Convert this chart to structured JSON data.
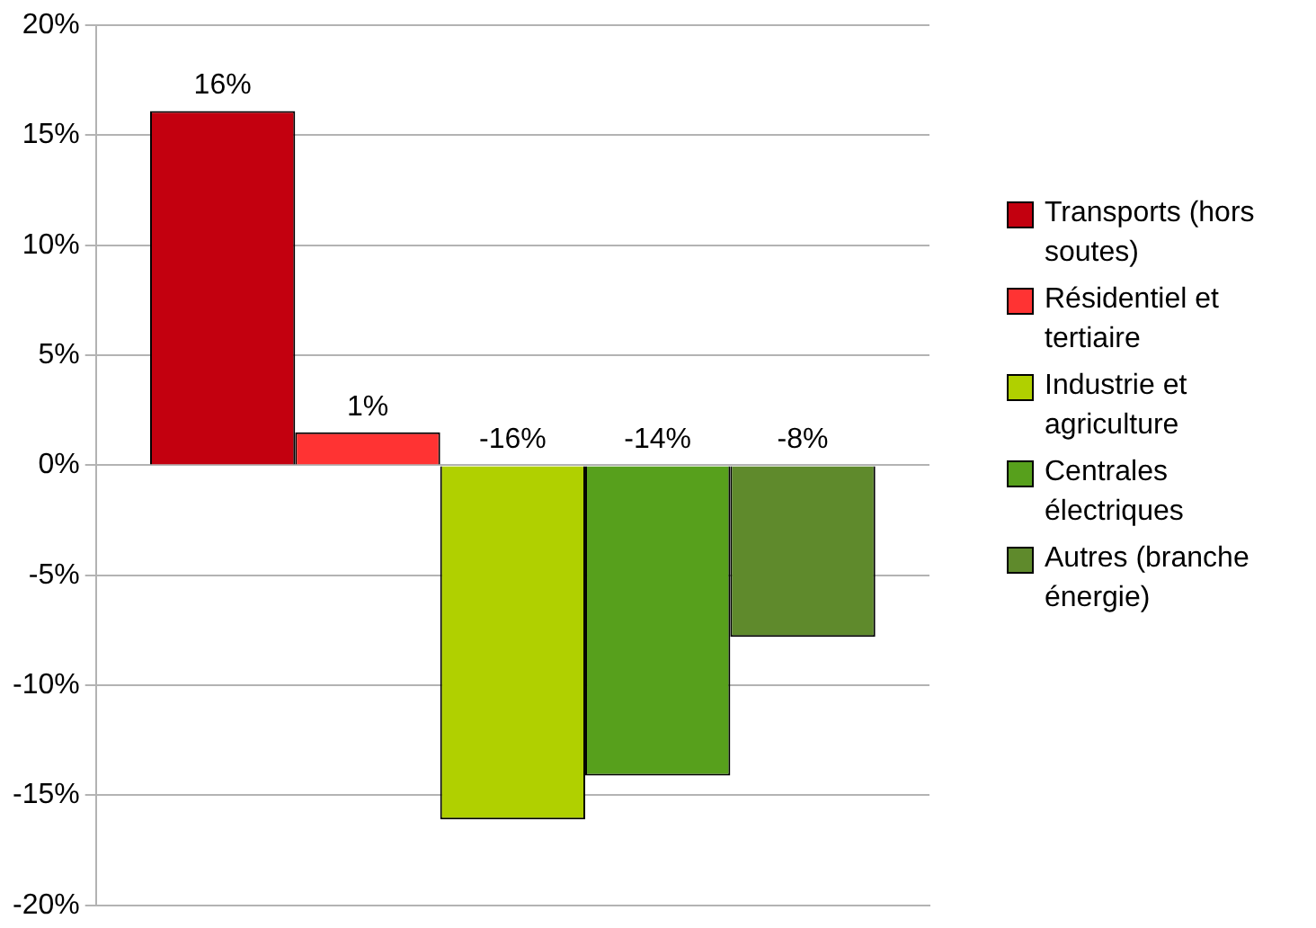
{
  "chart_data": {
    "type": "bar",
    "categories": [
      null
    ],
    "series": [
      {
        "name": "Transports (hors soutes)",
        "color": "#c3000f",
        "values": [
          16.1
        ],
        "value_labels": [
          "16%"
        ]
      },
      {
        "name": "Résidentiel et tertiaire",
        "color": "#ff3333",
        "values": [
          1.5
        ],
        "value_labels": [
          "1%"
        ]
      },
      {
        "name": "Industrie et agriculture",
        "color": "#b0d000",
        "values": [
          -16.1
        ],
        "value_labels": [
          "-16%"
        ]
      },
      {
        "name": "Centrales électriques",
        "color": "#57a01c",
        "values": [
          -14.1
        ],
        "value_labels": [
          "-14%"
        ]
      },
      {
        "name": "Autres (branche énergie)",
        "color": "#5f8a2c",
        "values": [
          -7.8
        ],
        "value_labels": [
          "-8%"
        ]
      }
    ],
    "ylim": [
      -20,
      20
    ],
    "yticks": [
      {
        "value": -20,
        "label": "-20%"
      },
      {
        "value": -15,
        "label": "-15%"
      },
      {
        "value": -10,
        "label": "-10%"
      },
      {
        "value": -5,
        "label": "-5%"
      },
      {
        "value": 0,
        "label": "0%"
      },
      {
        "value": 5,
        "label": "5%"
      },
      {
        "value": 10,
        "label": "10%"
      },
      {
        "value": 15,
        "label": "15%"
      },
      {
        "value": 20,
        "label": "20%"
      }
    ],
    "grid": "y",
    "legend": "right"
  }
}
